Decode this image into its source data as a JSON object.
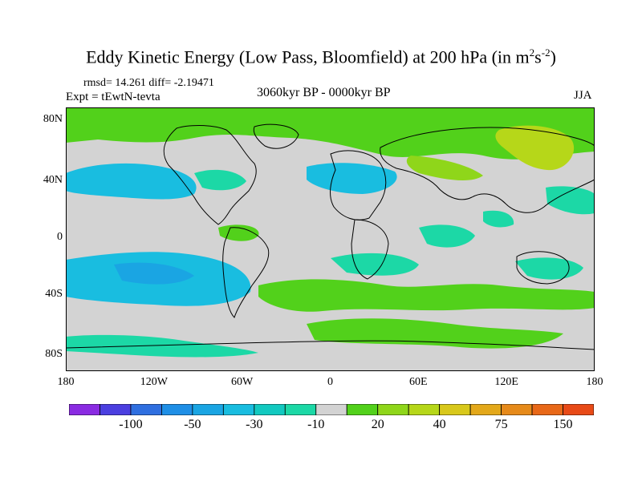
{
  "title": {
    "prefix": "Eddy Kinetic Energy (Low Pass, Bloomfield) at 200 hPa (in m",
    "sup1": "2",
    "mid": "s",
    "sup2": "-2",
    "suffix": ")"
  },
  "stats": "rmsd= 14.261  diff= -2.19471",
  "expt": "Expt = tEwtN-tevta",
  "period": "3060kyr BP - 0000kyr BP",
  "season": "JJA",
  "axes": {
    "y_ticks": [
      "80N",
      "40N",
      "0",
      "40S",
      "80S"
    ],
    "x_ticks": [
      "180",
      "120W",
      "60W",
      "0",
      "60E",
      "120E",
      "180"
    ]
  },
  "colors": {
    "ocean_neutral": "#d3d3d3",
    "coastline": "#000000"
  },
  "colorbar": {
    "colors": [
      "#8a2be2",
      "#4b3fe0",
      "#2f6fe0",
      "#1f8fe6",
      "#1aa5e3",
      "#19bde0",
      "#12c9c0",
      "#1cd8a6",
      "#d3d3d3",
      "#52d11b",
      "#8fd61a",
      "#b6d719",
      "#d8c81b",
      "#e3a81a",
      "#e68a1a",
      "#e86818",
      "#e84a17"
    ],
    "labels": [
      "-100",
      "-50",
      "-30",
      "-10",
      "20",
      "40",
      "75",
      "150"
    ]
  }
}
